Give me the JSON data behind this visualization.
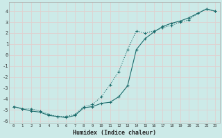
{
  "xlabel": "Humidex (Indice chaleur)",
  "bg_color": "#cceae8",
  "grid_color": "#e0d0d0",
  "line_color": "#1a6b6b",
  "xlim": [
    -0.5,
    23.5
  ],
  "ylim": [
    -6.2,
    4.8
  ],
  "yticks": [
    -6,
    -5,
    -4,
    -3,
    -2,
    -1,
    0,
    1,
    2,
    3,
    4
  ],
  "xticks": [
    0,
    1,
    2,
    3,
    4,
    5,
    6,
    7,
    8,
    9,
    10,
    11,
    12,
    13,
    14,
    15,
    16,
    17,
    18,
    19,
    20,
    21,
    22,
    23
  ],
  "curve1_x": [
    0,
    1,
    2,
    3,
    4,
    5,
    6,
    7,
    8,
    9,
    10,
    11,
    12,
    13,
    14,
    15,
    16,
    17,
    18,
    19,
    20,
    21,
    22,
    23
  ],
  "curve1_y": [
    -4.7,
    -4.9,
    -4.9,
    -5.1,
    -5.4,
    -5.6,
    -5.6,
    -5.4,
    -4.7,
    -4.5,
    -3.8,
    -2.7,
    -1.5,
    0.5,
    2.2,
    2.0,
    2.2,
    2.5,
    2.7,
    3.0,
    3.2,
    3.8,
    4.2,
    4.0
  ],
  "curve2_x": [
    0,
    1,
    2,
    3,
    4,
    5,
    6,
    7,
    8,
    9,
    10,
    11,
    12,
    13,
    14,
    15,
    16,
    17,
    18,
    19,
    20,
    21,
    22,
    23
  ],
  "curve2_y": [
    -4.7,
    -4.9,
    -5.1,
    -5.2,
    -5.5,
    -5.6,
    -5.7,
    -5.5,
    -4.8,
    -4.7,
    -4.4,
    -4.3,
    -3.8,
    -2.8,
    0.5,
    1.5,
    2.1,
    2.6,
    2.9,
    3.1,
    3.4,
    3.8,
    4.2,
    4.0
  ]
}
